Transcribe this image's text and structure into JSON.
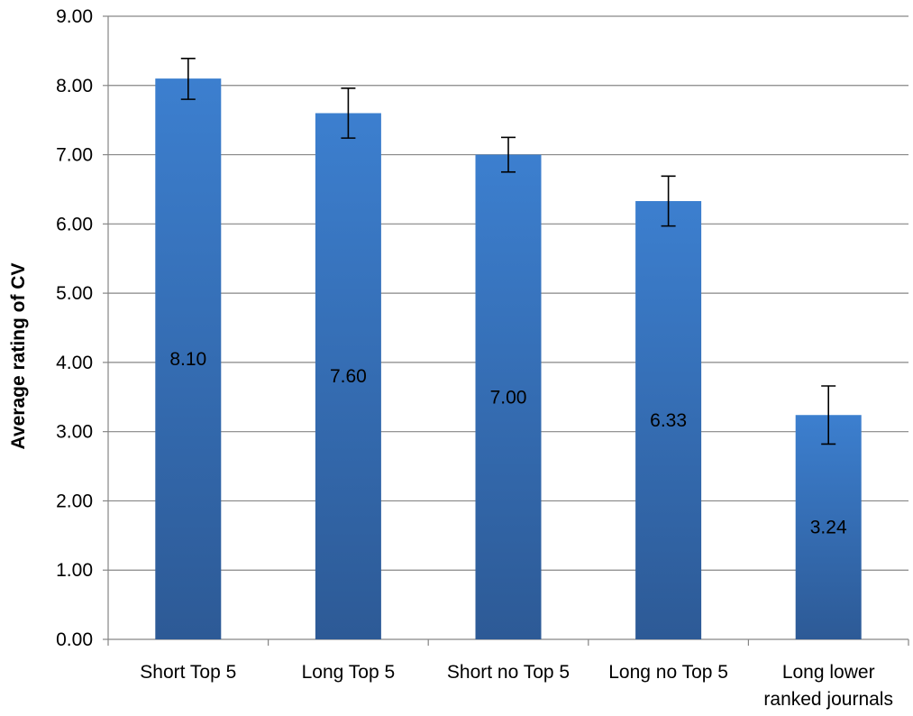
{
  "chart_data": {
    "type": "bar",
    "title": "",
    "xlabel": "",
    "ylabel": "Average rating of CV",
    "ylim": [
      0,
      9
    ],
    "yticks": [
      0,
      1,
      2,
      3,
      4,
      5,
      6,
      7,
      8,
      9
    ],
    "ytick_labels": [
      "0.00",
      "1.00",
      "2.00",
      "3.00",
      "4.00",
      "5.00",
      "6.00",
      "7.00",
      "8.00",
      "9.00"
    ],
    "grid": true,
    "legend": "none",
    "categories": [
      [
        "Short Top 5"
      ],
      [
        "Long Top 5"
      ],
      [
        "Short no Top 5"
      ],
      [
        "Long no Top 5"
      ],
      [
        "Long lower",
        "ranked journals"
      ]
    ],
    "values": [
      8.1,
      7.6,
      7.0,
      6.33,
      3.24
    ],
    "data_labels": [
      "8.10",
      "7.60",
      "7.00",
      "6.33",
      "3.24"
    ],
    "error_bars": [
      [
        7.8,
        8.39
      ],
      [
        7.24,
        7.96
      ],
      [
        6.75,
        7.25
      ],
      [
        5.97,
        6.69
      ],
      [
        2.82,
        3.66
      ]
    ],
    "colors": {
      "bar_top": "#3c7fcf",
      "bar_bottom": "#2d5a96",
      "grid": "#868686",
      "axis": "#868686",
      "error_bar": "#000000"
    }
  }
}
